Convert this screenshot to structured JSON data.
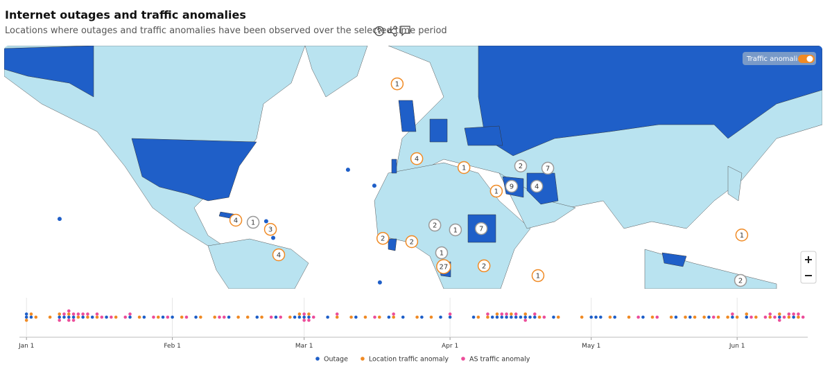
{
  "header": {
    "title": "Internet outages and traffic anomalies",
    "subtitle": "Locations where outages and traffic anomalies have been observed over the selected time period"
  },
  "map": {
    "toggle_label": "Traffic anomalies",
    "markers": [
      {
        "count": 1,
        "kind": "anomaly",
        "lon": -2.8,
        "lat": 58.7
      },
      {
        "count": 4,
        "kind": "anomaly",
        "lon": 5.0,
        "lat": 39.5
      },
      {
        "count": 1,
        "kind": "anomaly",
        "lon": 23.8,
        "lat": 36.7
      },
      {
        "count": 1,
        "kind": "anomaly",
        "lon": 36.7,
        "lat": 28.8
      },
      {
        "count": 9,
        "kind": "outage",
        "lon": 42.8,
        "lat": 30.5
      },
      {
        "count": 2,
        "kind": "outage",
        "lon": 46.4,
        "lat": 37.2
      },
      {
        "count": 4,
        "kind": "outage",
        "lon": 52.8,
        "lat": 30.5
      },
      {
        "count": 7,
        "kind": "outage",
        "lon": 57.2,
        "lat": 36.5
      },
      {
        "count": 4,
        "kind": "anomaly",
        "lon": -67.1,
        "lat": 18.2
      },
      {
        "count": 1,
        "kind": "outage",
        "lon": -60.2,
        "lat": 17.4
      },
      {
        "count": 3,
        "kind": "anomaly",
        "lon": -53.3,
        "lat": 14.7
      },
      {
        "count": 4,
        "kind": "anomaly",
        "lon": -50.0,
        "lat": 4.7
      },
      {
        "count": 2,
        "kind": "anomaly",
        "lon": -8.5,
        "lat": 11.2
      },
      {
        "count": 2,
        "kind": "anomaly",
        "lon": 3.0,
        "lat": 9.9
      },
      {
        "count": 2,
        "kind": "outage",
        "lon": 12.2,
        "lat": 16.3
      },
      {
        "count": 1,
        "kind": "outage",
        "lon": 20.4,
        "lat": 14.5
      },
      {
        "count": 7,
        "kind": "outage",
        "lon": 30.7,
        "lat": 15.0
      },
      {
        "count": 1,
        "kind": "outage",
        "lon": 14.9,
        "lat": 5.5
      },
      {
        "count": 27,
        "kind": "anomaly",
        "lon": 15.7,
        "lat": 0.0
      },
      {
        "count": 2,
        "kind": "anomaly",
        "lon": 31.8,
        "lat": 0.3
      },
      {
        "count": 1,
        "kind": "anomaly",
        "lon": 53.3,
        "lat": -3.6
      },
      {
        "count": 1,
        "kind": "anomaly",
        "lon": 134.5,
        "lat": 12.5
      },
      {
        "count": 2,
        "kind": "outage",
        "lon": 134.0,
        "lat": -5.5
      }
    ],
    "outage_points": [
      {
        "lon": -22.4,
        "lat": 36.0
      },
      {
        "lon": -11.9,
        "lat": 30.7
      },
      {
        "lon": -9.7,
        "lat": -6.3
      },
      {
        "lon": -55.0,
        "lat": 17.8
      },
      {
        "lon": -52.2,
        "lat": 11.4
      },
      {
        "lon": -137.3,
        "lat": 18.7
      }
    ]
  },
  "timeline": {
    "xlim": [
      -1.5,
      166
    ],
    "xticks": [
      {
        "value": 0,
        "label": "Jan 1"
      },
      {
        "value": 31,
        "label": "Feb 1"
      },
      {
        "value": 59,
        "label": "Mar 1"
      },
      {
        "value": 90,
        "label": "Apr 1"
      },
      {
        "value": 120,
        "label": "May 1"
      },
      {
        "value": 151,
        "label": "Jun 1"
      }
    ],
    "series": [
      {
        "name": "Outage",
        "color": "#1f5fc8",
        "days": [
          0,
          0,
          1,
          7,
          8,
          9,
          10,
          12,
          14,
          17,
          22,
          25,
          29,
          31,
          36,
          43,
          49,
          53,
          57,
          58,
          59,
          60,
          64,
          70,
          77,
          80,
          84,
          88,
          90,
          95,
          99,
          100,
          101,
          102,
          103,
          104,
          105,
          106,
          107,
          108,
          112,
          120,
          121,
          122,
          125,
          131,
          138,
          141,
          145,
          150,
          153,
          160,
          163
        ]
      },
      {
        "name": "Location traffic anomaly",
        "color": "#f08a24",
        "days": [
          0,
          1,
          2,
          5,
          7,
          9,
          11,
          13,
          15,
          19,
          24,
          28,
          33,
          37,
          40,
          45,
          47,
          50,
          56,
          58,
          60,
          66,
          69,
          72,
          75,
          78,
          83,
          86,
          96,
          98,
          100,
          103,
          106,
          109,
          113,
          118,
          124,
          128,
          133,
          137,
          140,
          142,
          144,
          147,
          149,
          151,
          153,
          155,
          158,
          160,
          162,
          164
        ]
      },
      {
        "name": "AS traffic anomaly",
        "color": "#ec4d9a",
        "days": [
          7,
          8,
          9,
          9,
          10,
          10,
          11,
          12,
          13,
          15,
          16,
          18,
          21,
          22,
          27,
          30,
          34,
          41,
          42,
          52,
          54,
          59,
          59,
          60,
          61,
          66,
          74,
          78,
          90,
          98,
          101,
          102,
          104,
          106,
          108,
          110,
          130,
          134,
          146,
          150,
          154,
          157,
          158,
          159,
          160,
          161,
          162,
          163,
          164,
          165
        ]
      }
    ]
  }
}
